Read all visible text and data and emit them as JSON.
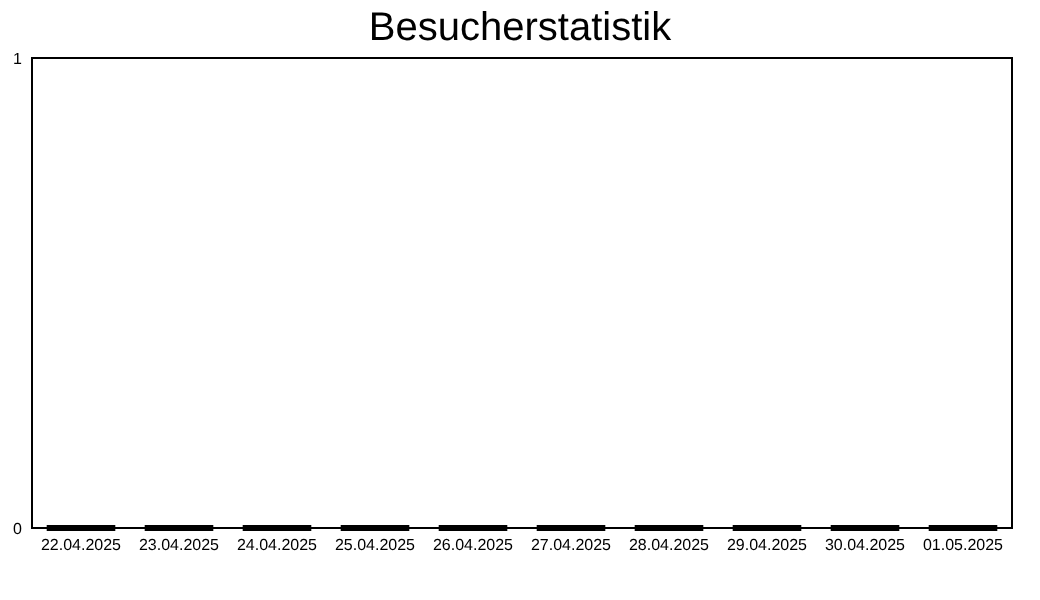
{
  "chart_data": {
    "type": "bar",
    "title": "Besucherstatistik",
    "categories": [
      "22.04.2025",
      "23.04.2025",
      "24.04.2025",
      "25.04.2025",
      "26.04.2025",
      "27.04.2025",
      "28.04.2025",
      "29.04.2025",
      "30.04.2025",
      "01.05.2025"
    ],
    "values": [
      0,
      0,
      0,
      0,
      0,
      0,
      0,
      0,
      0,
      0
    ],
    "color": "#000000",
    "ylim": [
      0,
      1
    ],
    "yticks": [
      0,
      1
    ]
  }
}
